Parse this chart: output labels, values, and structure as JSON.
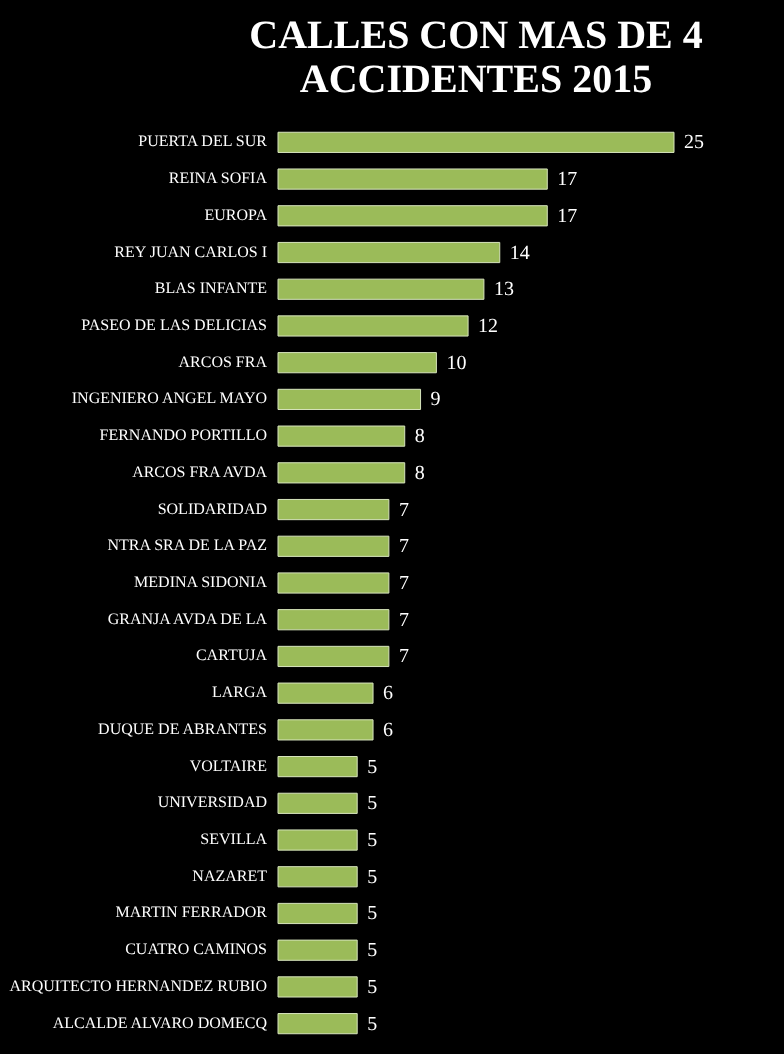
{
  "chart_data": {
    "type": "bar",
    "orientation": "horizontal",
    "title": "CALLES CON MAS DE 4\nACCIDENTES 2015",
    "categories": [
      "PUERTA DEL SUR",
      "REINA SOFIA",
      "EUROPA",
      "REY JUAN CARLOS I",
      "BLAS INFANTE",
      "PASEO DE LAS DELICIAS",
      "ARCOS FRA",
      "INGENIERO ANGEL MAYO",
      "FERNANDO PORTILLO",
      "ARCOS FRA AVDA",
      "SOLIDARIDAD",
      "NTRA SRA DE LA PAZ",
      "MEDINA SIDONIA",
      "GRANJA AVDA DE LA",
      "CARTUJA",
      "LARGA",
      "DUQUE DE ABRANTES",
      "VOLTAIRE",
      "UNIVERSIDAD",
      "SEVILLA",
      "NAZARET",
      "MARTIN FERRADOR",
      "CUATRO CAMINOS",
      "ARQUITECTO HERNANDEZ RUBIO",
      "ALCALDE ALVARO DOMECQ"
    ],
    "values": [
      25,
      17,
      17,
      14,
      13,
      12,
      10,
      9,
      8,
      8,
      7,
      7,
      7,
      7,
      7,
      6,
      6,
      5,
      5,
      5,
      5,
      5,
      5,
      5,
      5
    ],
    "color": "#9bbb59",
    "data_labels": true,
    "tick_labels": "y"
  }
}
